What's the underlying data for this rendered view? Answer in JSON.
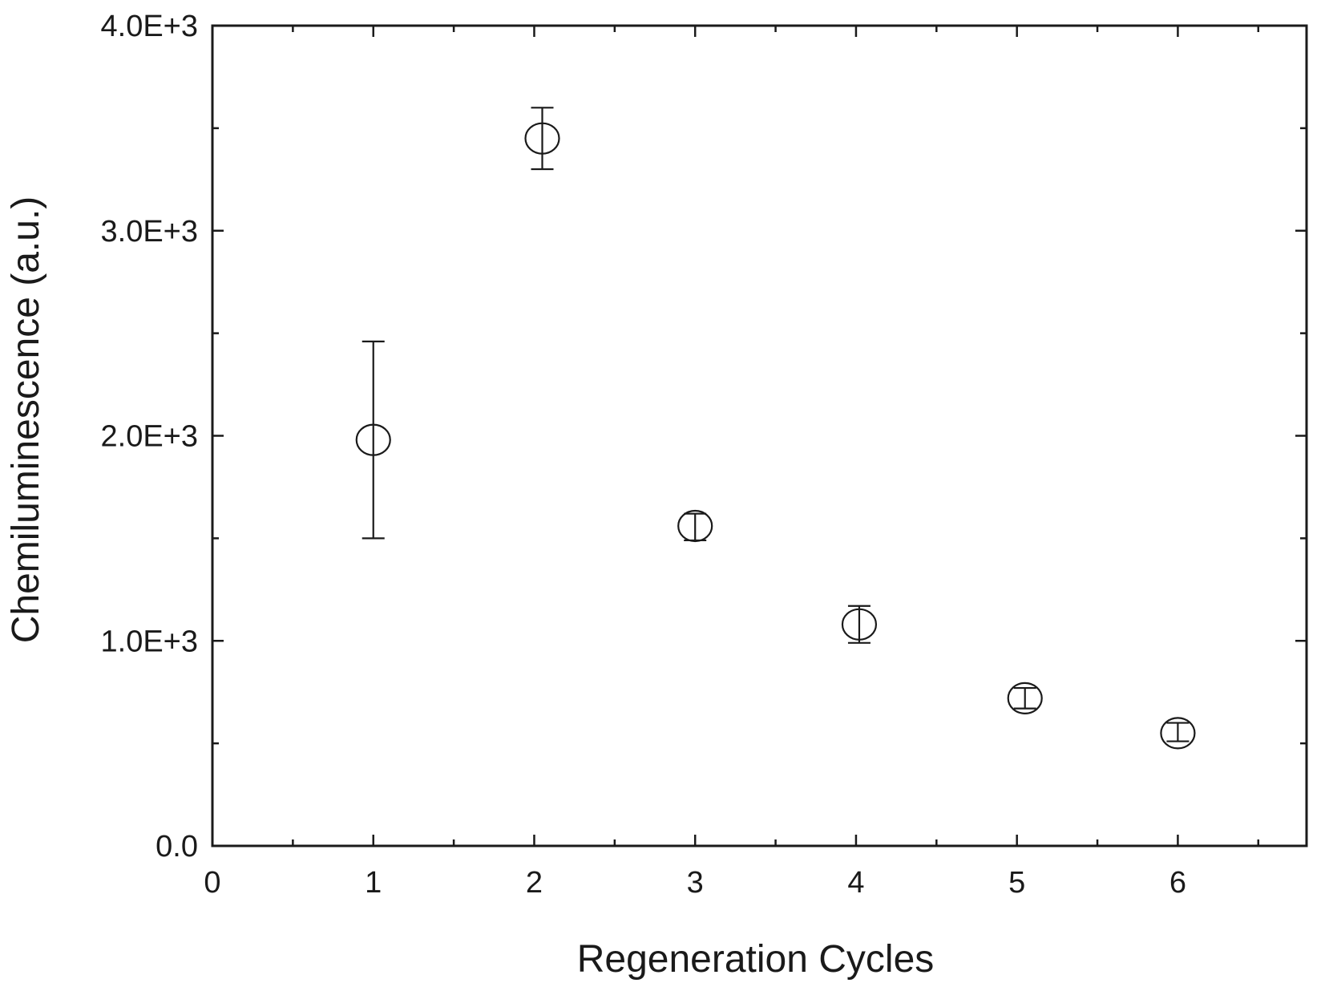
{
  "chart_data": {
    "type": "scatter",
    "xlabel": "Regeneration Cycles",
    "ylabel": "Chemiluminescence (a.u.)",
    "xlim": [
      0,
      6.8
    ],
    "ylim": [
      0,
      4000
    ],
    "x_ticks": [
      0,
      1,
      2,
      3,
      4,
      5,
      6
    ],
    "x_tick_labels": [
      "0",
      "1",
      "2",
      "3",
      "4",
      "5",
      "6"
    ],
    "y_ticks": [
      0,
      1000,
      2000,
      3000,
      4000
    ],
    "y_tick_labels": [
      "0.0",
      "1.0E+3",
      "2.0E+3",
      "3.0E+3",
      "4.0E+3"
    ],
    "grid": false,
    "marker": "open-circle",
    "series": [
      {
        "points": [
          {
            "x": 1.0,
            "y": 1980,
            "err_low": 1500,
            "err_high": 2460
          },
          {
            "x": 2.05,
            "y": 3450,
            "err_low": 3300,
            "err_high": 3600
          },
          {
            "x": 3.0,
            "y": 1560,
            "err_low": 1490,
            "err_high": 1620
          },
          {
            "x": 4.02,
            "y": 1080,
            "err_low": 990,
            "err_high": 1170
          },
          {
            "x": 5.05,
            "y": 720,
            "err_low": 670,
            "err_high": 770
          },
          {
            "x": 6.0,
            "y": 550,
            "err_low": 510,
            "err_high": 600
          }
        ]
      }
    ]
  }
}
